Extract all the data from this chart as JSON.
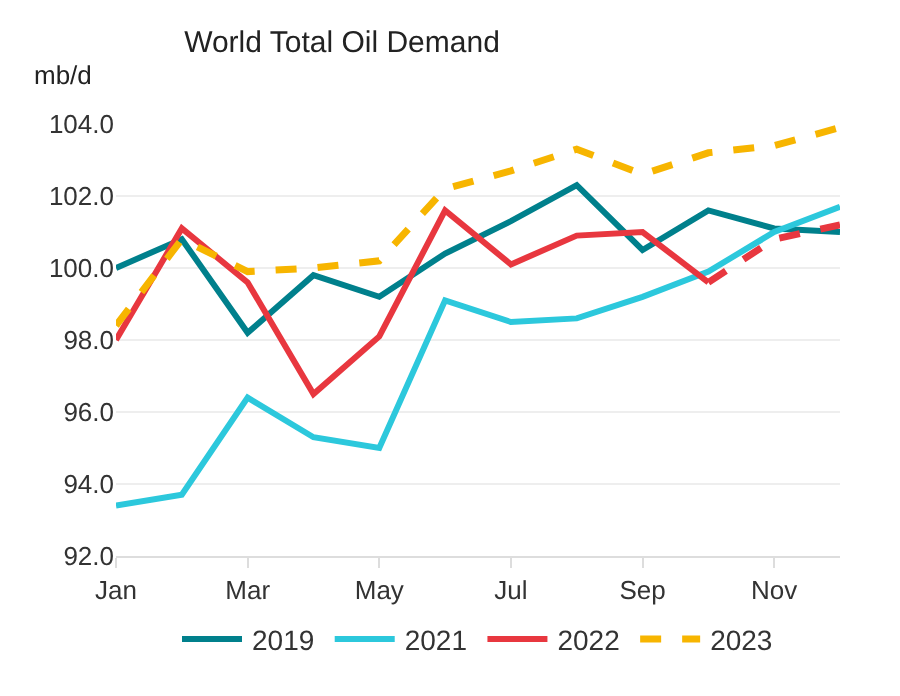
{
  "chart_data": {
    "type": "line",
    "title": "World Total Oil Demand",
    "ylabel": "mb/d",
    "categories": [
      "Jan",
      null,
      "Mar",
      null,
      "May",
      null,
      "Jul",
      null,
      "Sep",
      null,
      "Nov",
      null
    ],
    "series": [
      {
        "name": "2019",
        "color": "#00808c",
        "line_style": "solid",
        "values": [
          100.0,
          100.8,
          98.2,
          99.8,
          99.2,
          100.4,
          101.3,
          102.3,
          100.5,
          101.6,
          101.1,
          101.0
        ]
      },
      {
        "name": "2021",
        "color": "#2cc8dc",
        "line_style": "solid",
        "values": [
          93.4,
          93.7,
          96.4,
          95.3,
          95.0,
          99.1,
          98.5,
          98.6,
          99.2,
          99.9,
          101.0,
          101.7
        ]
      },
      {
        "name": "2022",
        "color": "#e8373f",
        "line_style": "solid",
        "values": [
          98.0,
          101.1,
          99.6,
          96.5,
          98.1,
          101.6,
          100.1,
          100.9,
          101.0,
          99.6,
          null,
          null
        ]
      },
      {
        "color": "#e8373f",
        "line_style": "dashed",
        "values": [
          null,
          null,
          null,
          null,
          null,
          null,
          null,
          null,
          null,
          99.6,
          100.8,
          101.2
        ]
      },
      {
        "name": "2023",
        "color": "#f7b500",
        "line_style": "dashed",
        "values": [
          98.4,
          100.8,
          99.9,
          100.0,
          100.2,
          102.2,
          102.7,
          103.3,
          102.6,
          103.2,
          103.4,
          103.9
        ]
      }
    ],
    "ylim": [
      92,
      104
    ],
    "yticks": [
      {
        "value": 92,
        "label": "92.0"
      },
      {
        "value": 94,
        "label": "94.0"
      },
      {
        "value": 96,
        "label": "96.0"
      },
      {
        "value": 98,
        "label": "98.0"
      },
      {
        "value": 100,
        "label": "100.0"
      },
      {
        "value": 102,
        "label": "102.0"
      },
      {
        "value": 104,
        "label": "104.0"
      }
    ],
    "grid": "y",
    "legend": "bottom",
    "marker": "none"
  }
}
